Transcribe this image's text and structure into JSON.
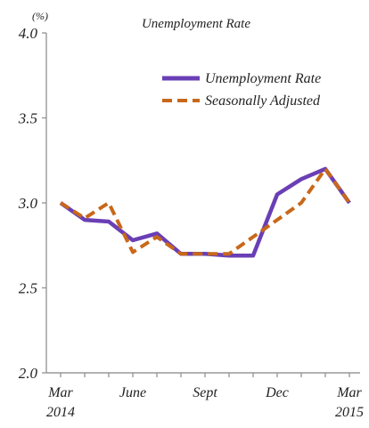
{
  "chart_data": {
    "type": "line",
    "title": "Unemployment Rate",
    "y_unit": "(%)",
    "ylim": [
      2.0,
      4.0
    ],
    "yticks": [
      "4.0",
      "3.5",
      "3.0",
      "2.5",
      "2.0"
    ],
    "ytick_values": [
      4.0,
      3.5,
      3.0,
      2.5,
      2.0
    ],
    "x_count": 13,
    "x_tick_labels": [
      {
        "index": 0,
        "lines": [
          "Mar",
          "2014"
        ]
      },
      {
        "index": 3,
        "lines": [
          "June"
        ]
      },
      {
        "index": 6,
        "lines": [
          "Sept"
        ]
      },
      {
        "index": 9,
        "lines": [
          "Dec"
        ]
      },
      {
        "index": 12,
        "lines": [
          "Mar",
          "2015"
        ]
      }
    ],
    "legend_position": "top-right",
    "grid": false,
    "series": [
      {
        "name": "Unemployment Rate",
        "color": "#6a3fb5",
        "style": "solid",
        "values": [
          3.0,
          2.9,
          2.89,
          2.78,
          2.82,
          2.7,
          2.7,
          2.69,
          2.69,
          3.05,
          3.14,
          3.2,
          3.0
        ]
      },
      {
        "name": "Seasonally Adjusted",
        "color": "#c8681a",
        "style": "dashed",
        "values": [
          3.0,
          2.91,
          3.0,
          2.71,
          2.8,
          2.7,
          2.7,
          2.7,
          2.8,
          2.9,
          3.0,
          3.2,
          3.0
        ]
      }
    ]
  }
}
